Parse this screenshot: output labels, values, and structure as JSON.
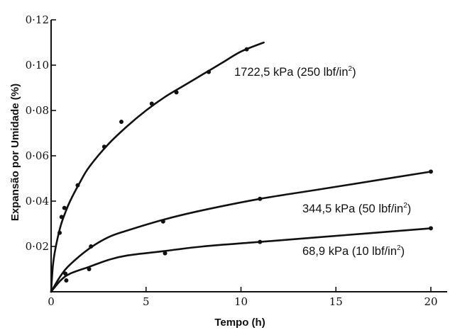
{
  "chart_data": {
    "type": "line",
    "xlabel": "Tempo (h)",
    "ylabel": "Expansão por Umidade (%)",
    "xlim": [
      0,
      20
    ],
    "ylim": [
      0,
      0.12
    ],
    "x_ticks": [
      0,
      5,
      10,
      15,
      20
    ],
    "x_tick_labels": [
      "0",
      "5",
      "10",
      "15",
      "20"
    ],
    "y_ticks": [
      0.02,
      0.04,
      0.06,
      0.08,
      0.1,
      0.12
    ],
    "y_tick_labels": [
      "0·02",
      "0·04",
      "0·06",
      "0·08",
      "0·10",
      "0·12"
    ],
    "grid": false,
    "series": [
      {
        "name": "1722,5 kPa (250 lbf/in2)",
        "label_main": "1722,5 kPa (250 lbf/in",
        "label_sup": "2",
        "label_end": ")",
        "points": [
          [
            0.45,
            0.026
          ],
          [
            0.55,
            0.033
          ],
          [
            0.7,
            0.037
          ],
          [
            1.4,
            0.047
          ],
          [
            2.8,
            0.064
          ],
          [
            3.7,
            0.075
          ],
          [
            5.3,
            0.083
          ],
          [
            6.6,
            0.088
          ],
          [
            8.3,
            0.097
          ],
          [
            10.3,
            0.107
          ]
        ],
        "curve": [
          [
            0,
            0
          ],
          [
            0.1,
            0.012
          ],
          [
            0.25,
            0.02
          ],
          [
            0.5,
            0.029
          ],
          [
            0.75,
            0.035
          ],
          [
            1,
            0.04
          ],
          [
            1.5,
            0.048
          ],
          [
            2,
            0.055
          ],
          [
            3,
            0.065
          ],
          [
            4,
            0.073
          ],
          [
            5,
            0.08
          ],
          [
            6,
            0.086
          ],
          [
            7,
            0.091
          ],
          [
            8,
            0.096
          ],
          [
            9,
            0.101
          ],
          [
            10,
            0.106
          ],
          [
            11.2,
            0.11
          ]
        ]
      },
      {
        "name": "344,5 kPa (50 lbf/in2)",
        "label_main": "344,5 kPa (50 lbf/in",
        "label_sup": "2",
        "label_end": ")",
        "points": [
          [
            0.75,
            0.008
          ],
          [
            2.1,
            0.02
          ],
          [
            5.9,
            0.031
          ],
          [
            11,
            0.041
          ],
          [
            20,
            0.053
          ]
        ],
        "curve": [
          [
            0,
            0
          ],
          [
            0.5,
            0.007
          ],
          [
            1,
            0.012
          ],
          [
            2,
            0.019
          ],
          [
            3,
            0.024
          ],
          [
            4,
            0.027
          ],
          [
            6,
            0.032
          ],
          [
            8,
            0.036
          ],
          [
            11,
            0.041
          ],
          [
            14,
            0.045
          ],
          [
            17,
            0.049
          ],
          [
            20,
            0.053
          ]
        ]
      },
      {
        "name": "68,9 kPa (10 lbf/in2)",
        "label_main": "68,9 kPa (10 lbf/in",
        "label_sup": "2",
        "label_end": ")",
        "points": [
          [
            0.8,
            0.005
          ],
          [
            2,
            0.01
          ],
          [
            6,
            0.017
          ],
          [
            11,
            0.022
          ],
          [
            20,
            0.028
          ]
        ],
        "curve": [
          [
            0,
            0
          ],
          [
            0.5,
            0.005
          ],
          [
            1,
            0.008
          ],
          [
            2,
            0.011
          ],
          [
            3,
            0.014
          ],
          [
            4,
            0.016
          ],
          [
            6,
            0.018
          ],
          [
            8,
            0.02
          ],
          [
            11,
            0.022
          ],
          [
            14,
            0.024
          ],
          [
            17,
            0.026
          ],
          [
            20,
            0.028
          ]
        ]
      }
    ]
  }
}
